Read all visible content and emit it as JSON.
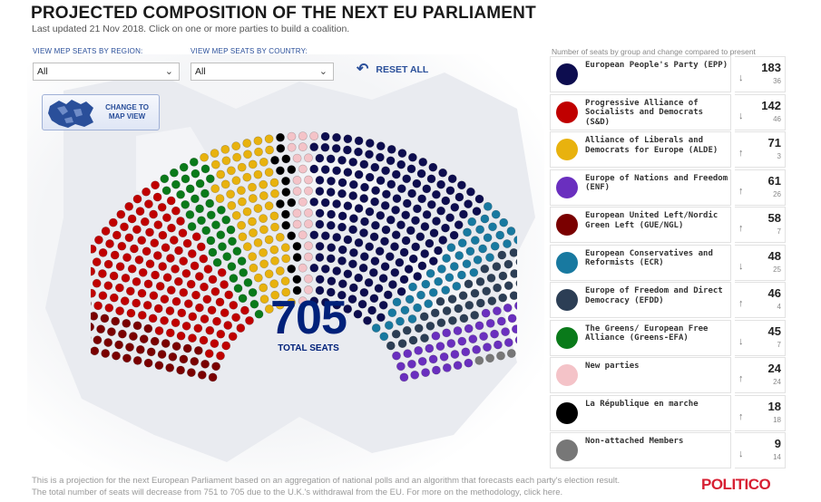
{
  "header": {
    "title": "PROJECTED COMPOSITION OF THE NEXT EU PARLIAMENT",
    "subtitle": "Last updated 21 Nov 2018. Click on one or more parties to build a coalition."
  },
  "filters": {
    "region": {
      "label": "VIEW MEP SEATS BY REGION:",
      "value": "All"
    },
    "country": {
      "label": "VIEW MEP SEATS BY COUNTRY:",
      "value": "All"
    },
    "reset_label": "RESET ALL"
  },
  "map_button": {
    "label": "CHANGE TO MAP VIEW"
  },
  "hemicycle": {
    "total": "705",
    "total_label": "TOTAL SEATS"
  },
  "legend": {
    "heading": "Number of seats by group and change compared to present",
    "groups": [
      {
        "name": "European People's Party (EPP)",
        "seats": "183",
        "trend": "down",
        "change": "36",
        "color": "#0d0d4f"
      },
      {
        "name": "Progressive Alliance of Socialists and Democrats (S&D)",
        "seats": "142",
        "trend": "down",
        "change": "46",
        "color": "#c00000"
      },
      {
        "name": "Alliance of Liberals and Democrats for Europe (ALDE)",
        "seats": "71",
        "trend": "up",
        "change": "3",
        "color": "#e8b20e"
      },
      {
        "name": "Europe of Nations and Freedom (ENF)",
        "seats": "61",
        "trend": "up",
        "change": "26",
        "color": "#6a2fbf"
      },
      {
        "name": "European United Left/Nordic Green Left (GUE/NGL)",
        "seats": "58",
        "trend": "up",
        "change": "7",
        "color": "#7a0000"
      },
      {
        "name": "European Conservatives and Reformists (ECR)",
        "seats": "48",
        "trend": "down",
        "change": "25",
        "color": "#1879a0"
      },
      {
        "name": "Europe of Freedom and Direct Democracy (EFDD)",
        "seats": "46",
        "trend": "up",
        "change": "4",
        "color": "#2c3e55"
      },
      {
        "name": "The Greens/ European Free Alliance (Greens-EFA)",
        "seats": "45",
        "trend": "down",
        "change": "7",
        "color": "#0a7a1a"
      },
      {
        "name": "New parties",
        "seats": "24",
        "trend": "up",
        "change": "24",
        "color": "#f4c3c8"
      },
      {
        "name": "La République en marche",
        "seats": "18",
        "trend": "up",
        "change": "18",
        "color": "#000000"
      },
      {
        "name": "Non-attached Members",
        "seats": "9",
        "trend": "down",
        "change": "14",
        "color": "#777777"
      }
    ]
  },
  "hemicycle_order": [
    "GUE/NGL",
    "S&D",
    "Greens-EFA",
    "ALDE",
    "La République en marche",
    "New parties",
    "EPP",
    "ECR",
    "EFDD",
    "ENF",
    "Non-attached Members"
  ],
  "footnote": "This is a projection for the next European Parliament based on an aggregation of national polls and an algorithm that forecasts each party's election result. The total number of seats will decrease from 751 to 705 due to the U.K.'s withdrawal from the EU. For more on the methodology, click here.",
  "brand": "POLITICO"
}
